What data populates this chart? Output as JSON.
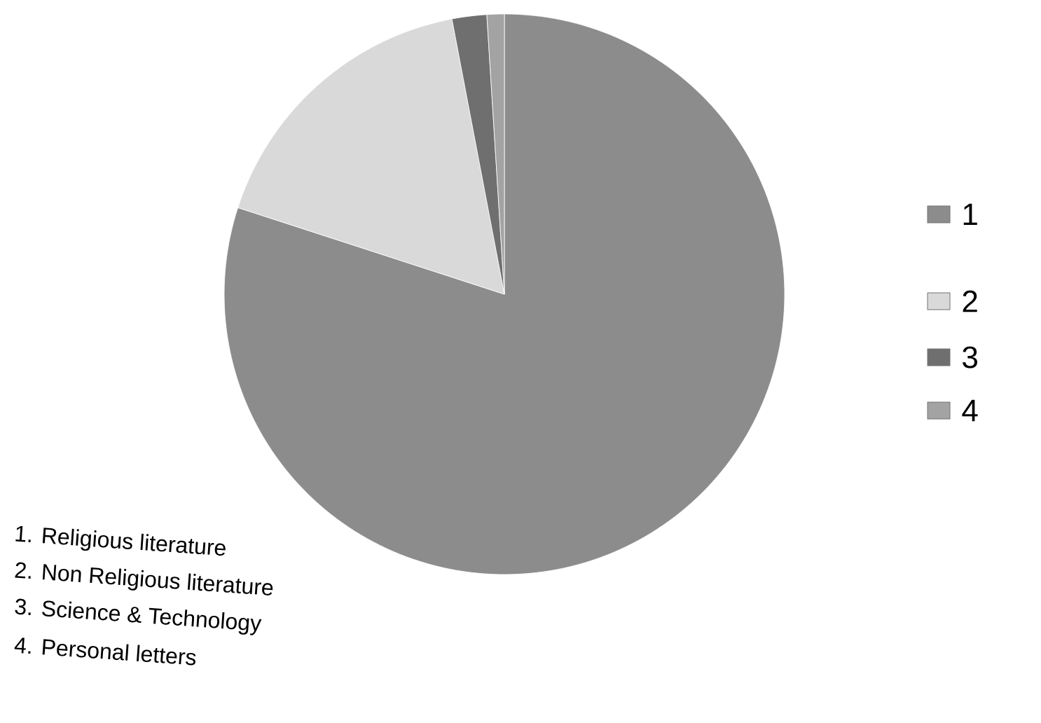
{
  "chart_data": {
    "type": "pie",
    "categories": [
      "1",
      "2",
      "3",
      "4"
    ],
    "values": [
      80,
      17,
      2,
      1
    ],
    "colors": [
      "#8c8c8c",
      "#d9d9d9",
      "#6f6f6f",
      "#a3a3a3"
    ],
    "legend": "right",
    "annotations": [
      "1. Religious literature",
      "2. Non Religious literature",
      "3. Science & Technology",
      "4. Personal letters"
    ]
  }
}
